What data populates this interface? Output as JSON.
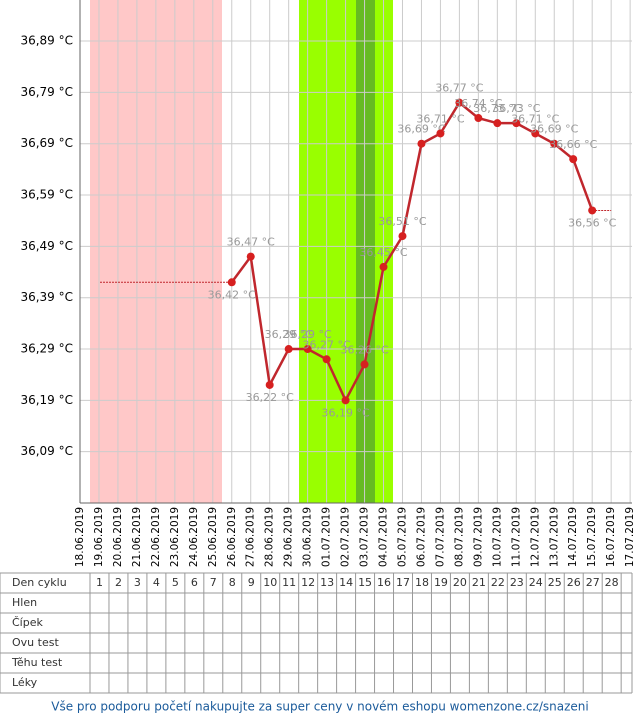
{
  "chart_data": {
    "type": "line",
    "categories": [
      "18.06.2019",
      "19.06.2019",
      "20.06.2019",
      "21.06.2019",
      "22.06.2019",
      "23.06.2019",
      "24.06.2019",
      "25.06.2019",
      "26.06.2019",
      "27.06.2019",
      "28.06.2019",
      "29.06.2019",
      "30.06.2019",
      "01.07.2019",
      "02.07.2019",
      "03.07.2019",
      "04.07.2019",
      "05.07.2019",
      "06.07.2019",
      "07.07.2019",
      "08.07.2019",
      "09.07.2019",
      "10.07.2019",
      "11.07.2019",
      "12.07.2019",
      "13.07.2019",
      "14.07.2019",
      "15.07.2019",
      "16.07.2019",
      "17.07.2019"
    ],
    "values": [
      null,
      null,
      null,
      null,
      null,
      null,
      null,
      null,
      36.42,
      36.47,
      36.22,
      36.29,
      36.29,
      36.27,
      36.19,
      36.26,
      36.45,
      36.51,
      36.69,
      36.71,
      36.77,
      36.74,
      36.73,
      36.73,
      36.71,
      36.69,
      36.66,
      36.56,
      null,
      null
    ],
    "value_labels": [
      null,
      null,
      null,
      null,
      null,
      null,
      null,
      null,
      "36,42 °C",
      "36,47 °C",
      "36,22 °C",
      "36,29 °C",
      "36,29 °C",
      "36,27 °C",
      "36,19 °C",
      "36,26 °C",
      "36,45 °C",
      "36,51 °C",
      "36,69 °C",
      "36,71 °C",
      "36,77 °C",
      "36,74 °C",
      "36,73 °C",
      "36,73 °C",
      "36,71 °C",
      "36,69 °C",
      "36,66 °C",
      "36,56 °C",
      null,
      null
    ],
    "color": "#c0272d",
    "ylim": [
      35.99,
      36.97
    ],
    "yticks": [
      {
        "value": 36.09,
        "label": "36,09 °C"
      },
      {
        "value": 36.19,
        "label": "36,19 °C"
      },
      {
        "value": 36.29,
        "label": "36,29 °C"
      },
      {
        "value": 36.39,
        "label": "36,39 °C"
      },
      {
        "value": 36.49,
        "label": "36,49 °C"
      },
      {
        "value": 36.59,
        "label": "36,59 °C"
      },
      {
        "value": 36.69,
        "label": "36,69 °C"
      },
      {
        "value": 36.79,
        "label": "36,79 °C"
      },
      {
        "value": 36.89,
        "label": "36,89 °C"
      }
    ],
    "grid": true
  },
  "cycle_table": {
    "row_labels": [
      "Den cyklu",
      "Hlen",
      "Čípek",
      "Ovu test",
      "Těhu test",
      "Léky"
    ],
    "days": [
      1,
      2,
      3,
      4,
      5,
      6,
      7,
      8,
      9,
      10,
      11,
      12,
      13,
      14,
      15,
      16,
      17,
      18,
      19,
      20,
      21,
      22,
      23,
      24,
      25,
      26,
      27,
      28
    ]
  },
  "footer": "Vše pro podporu početí nakupujte za super ceny v novém eshopu womenzone.cz/snazeni"
}
